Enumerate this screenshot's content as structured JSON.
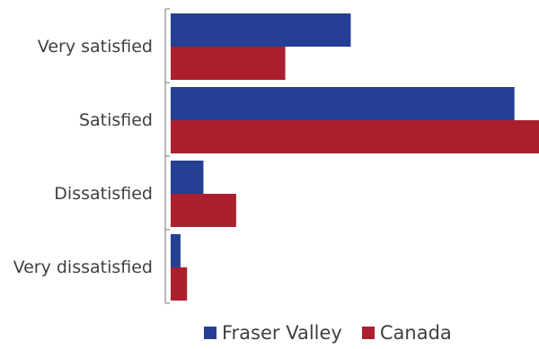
{
  "chart_data": {
    "type": "bar",
    "orientation": "horizontal",
    "categories": [
      "Very satisfied",
      "Satisfied",
      "Dissatisfied",
      "Very dissatisfied"
    ],
    "series": [
      {
        "name": "Fraser Valley",
        "color": "#253f94",
        "values": [
          22,
          42,
          4,
          1.2
        ]
      },
      {
        "name": "Canada",
        "color": "#ab1f2e",
        "values": [
          14,
          45,
          8,
          2
        ]
      }
    ],
    "xlim": [
      0,
      45
    ],
    "grid": false,
    "legend_position": "bottom",
    "title": "",
    "xlabel": "",
    "ylabel": ""
  }
}
